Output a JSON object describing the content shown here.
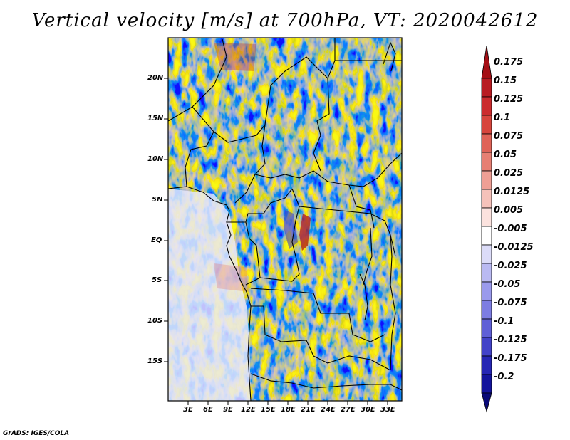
{
  "title": "Vertical velocity [m/s] at 700hPa, VT: 2020042612",
  "credit": "GrADS: IGES/COLA",
  "map": {
    "lat_labels": [
      "20N",
      "15N",
      "10N",
      "5N",
      "EQ",
      "5S",
      "10S",
      "15S"
    ],
    "lon_labels": [
      "3E",
      "6E",
      "9E",
      "12E",
      "15E",
      "18E",
      "21E",
      "24E",
      "27E",
      "30E",
      "33E"
    ]
  },
  "colorbar": {
    "levels": [
      "0.175",
      "0.15",
      "0.125",
      "0.1",
      "0.075",
      "0.05",
      "0.025",
      "0.0125",
      "0.005",
      "-0.005",
      "-0.0125",
      "-0.025",
      "-0.05",
      "-0.075",
      "-0.1",
      "-0.125",
      "-0.175",
      "-0.2"
    ],
    "colors": [
      "#a50f15",
      "#b81c22",
      "#cb2c2e",
      "#d7453d",
      "#df6358",
      "#e67f73",
      "#ee9f95",
      "#f5c2ba",
      "#fbe2de",
      "#ffffff",
      "#dcdcf8",
      "#babaf2",
      "#9a9aec",
      "#7d7de2",
      "#5f5fd6",
      "#4242c8",
      "#2626b4",
      "#14149c",
      "#0a0a78"
    ]
  }
}
